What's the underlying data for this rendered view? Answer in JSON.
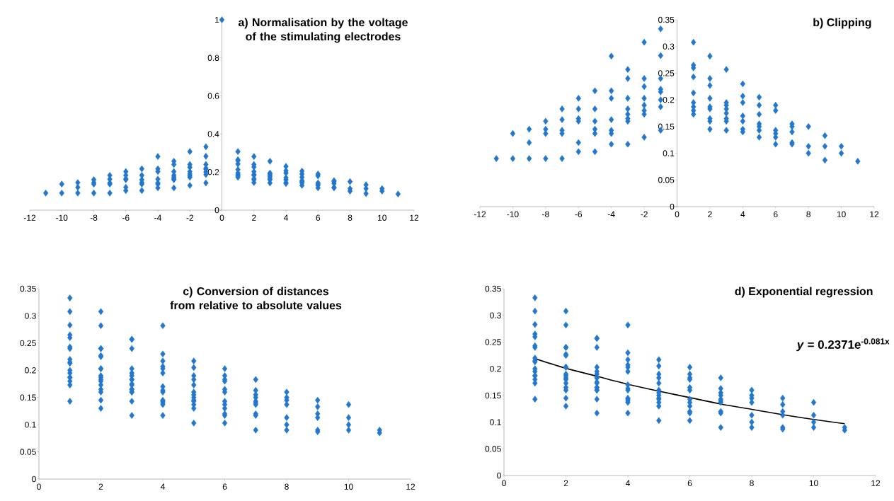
{
  "chart_data": [
    {
      "type": "scatter",
      "title": "a) Normalisation by the voltage of the stimulating electrodes",
      "xlim": [
        -12,
        12
      ],
      "xticks": [
        -12,
        -10,
        -8,
        -6,
        -4,
        -2,
        0,
        2,
        4,
        6,
        8,
        10,
        12
      ],
      "ylim": [
        0,
        1
      ],
      "yticks": [
        0,
        0.2,
        0.4,
        0.6,
        0.8,
        1
      ],
      "grid": false,
      "marker": "diamond",
      "series": [
        {
          "color": "#2377cc",
          "x": [
            0,
            -11,
            -10,
            -10,
            -9,
            -9,
            -9,
            -8,
            -8,
            -8,
            -8,
            -7,
            -7,
            -7,
            -7,
            -7,
            -6,
            -6,
            -6,
            -6,
            -6,
            -6,
            -5,
            -5,
            -5,
            -5,
            -5,
            -5,
            -4,
            -4,
            -4,
            -4,
            -4,
            -4,
            -4,
            -3,
            -3,
            -3,
            -3,
            -3,
            -3,
            -3,
            -3,
            -2,
            -2,
            -2,
            -2,
            -2,
            -2,
            -2,
            -2,
            -1,
            -1,
            -1,
            -1,
            -1,
            -1,
            -1,
            -1,
            1,
            1,
            1,
            1,
            1,
            1,
            1,
            1,
            1,
            2,
            2,
            2,
            2,
            2,
            2,
            2,
            2,
            2,
            3,
            3,
            3,
            3,
            3,
            3,
            3,
            3,
            4,
            4,
            4,
            4,
            4,
            4,
            4,
            5,
            5,
            5,
            5,
            5,
            5,
            5,
            6,
            6,
            6,
            6,
            6,
            6,
            7,
            7,
            7,
            7,
            7,
            8,
            8,
            8,
            9,
            9,
            9,
            10,
            10,
            11
          ],
          "values": [
            1,
            0.09,
            0.09,
            0.137,
            0.09,
            0.12,
            0.145,
            0.09,
            0.137,
            0.145,
            0.16,
            0.09,
            0.137,
            0.143,
            0.163,
            0.183,
            0.103,
            0.12,
            0.16,
            0.165,
            0.183,
            0.203,
            0.103,
            0.137,
            0.145,
            0.16,
            0.183,
            0.217,
            0.117,
            0.137,
            0.143,
            0.163,
            0.203,
            0.217,
            0.282,
            0.117,
            0.16,
            0.165,
            0.173,
            0.183,
            0.203,
            0.24,
            0.257,
            0.13,
            0.173,
            0.18,
            0.19,
            0.203,
            0.225,
            0.24,
            0.308,
            0.143,
            0.187,
            0.2,
            0.215,
            0.22,
            0.24,
            0.283,
            0.333,
            0.173,
            0.18,
            0.187,
            0.195,
            0.213,
            0.243,
            0.26,
            0.265,
            0.308,
            0.145,
            0.16,
            0.165,
            0.183,
            0.187,
            0.203,
            0.227,
            0.24,
            0.282,
            0.143,
            0.16,
            0.165,
            0.175,
            0.183,
            0.19,
            0.195,
            0.257,
            0.14,
            0.145,
            0.16,
            0.17,
            0.195,
            0.207,
            0.23,
            0.13,
            0.143,
            0.15,
            0.155,
            0.173,
            0.19,
            0.205,
            0.117,
            0.13,
            0.137,
            0.143,
            0.18,
            0.19,
            0.117,
            0.12,
            0.14,
            0.15,
            0.155,
            0.1,
            0.113,
            0.15,
            0.087,
            0.113,
            0.133,
            0.1,
            0.113,
            0.085
          ]
        }
      ]
    },
    {
      "type": "scatter",
      "title": "b) Clipping",
      "xlim": [
        -12,
        12
      ],
      "xticks": [
        -12,
        -10,
        -8,
        -6,
        -4,
        -2,
        0,
        2,
        4,
        6,
        8,
        10,
        12
      ],
      "ylim": [
        0,
        0.35
      ],
      "yticks": [
        0,
        0.05,
        0.1,
        0.15,
        0.2,
        0.25,
        0.3,
        0.35
      ],
      "grid": false,
      "marker": "diamond",
      "series": [
        {
          "color": "#2377cc",
          "x": [
            -11,
            -10,
            -10,
            -9,
            -9,
            -9,
            -8,
            -8,
            -8,
            -8,
            -7,
            -7,
            -7,
            -7,
            -7,
            -6,
            -6,
            -6,
            -6,
            -6,
            -6,
            -5,
            -5,
            -5,
            -5,
            -5,
            -5,
            -4,
            -4,
            -4,
            -4,
            -4,
            -4,
            -4,
            -3,
            -3,
            -3,
            -3,
            -3,
            -3,
            -3,
            -3,
            -2,
            -2,
            -2,
            -2,
            -2,
            -2,
            -2,
            -2,
            -1,
            -1,
            -1,
            -1,
            -1,
            -1,
            -1,
            -1,
            1,
            1,
            1,
            1,
            1,
            1,
            1,
            1,
            1,
            2,
            2,
            2,
            2,
            2,
            2,
            2,
            2,
            2,
            3,
            3,
            3,
            3,
            3,
            3,
            3,
            3,
            4,
            4,
            4,
            4,
            4,
            4,
            4,
            5,
            5,
            5,
            5,
            5,
            5,
            5,
            6,
            6,
            6,
            6,
            6,
            6,
            7,
            7,
            7,
            7,
            7,
            8,
            8,
            8,
            9,
            9,
            9,
            10,
            10,
            11
          ],
          "values": [
            0.09,
            0.09,
            0.137,
            0.09,
            0.12,
            0.145,
            0.09,
            0.137,
            0.145,
            0.16,
            0.09,
            0.137,
            0.143,
            0.163,
            0.183,
            0.103,
            0.12,
            0.16,
            0.165,
            0.183,
            0.203,
            0.103,
            0.137,
            0.145,
            0.16,
            0.183,
            0.217,
            0.117,
            0.137,
            0.143,
            0.163,
            0.203,
            0.217,
            0.282,
            0.117,
            0.16,
            0.165,
            0.173,
            0.183,
            0.203,
            0.24,
            0.257,
            0.13,
            0.173,
            0.18,
            0.19,
            0.203,
            0.225,
            0.24,
            0.308,
            0.143,
            0.187,
            0.2,
            0.215,
            0.22,
            0.24,
            0.283,
            0.333,
            0.173,
            0.18,
            0.187,
            0.195,
            0.213,
            0.243,
            0.26,
            0.265,
            0.308,
            0.145,
            0.16,
            0.165,
            0.183,
            0.187,
            0.203,
            0.227,
            0.24,
            0.282,
            0.143,
            0.16,
            0.165,
            0.175,
            0.183,
            0.19,
            0.195,
            0.257,
            0.14,
            0.145,
            0.16,
            0.17,
            0.195,
            0.207,
            0.23,
            0.13,
            0.143,
            0.15,
            0.155,
            0.173,
            0.19,
            0.205,
            0.117,
            0.13,
            0.137,
            0.143,
            0.18,
            0.19,
            0.117,
            0.12,
            0.14,
            0.15,
            0.155,
            0.1,
            0.113,
            0.15,
            0.087,
            0.113,
            0.133,
            0.1,
            0.113,
            0.085
          ]
        }
      ]
    },
    {
      "type": "scatter",
      "title": "c) Conversion of distances from relative to absolute values",
      "xlim": [
        0,
        12
      ],
      "xticks": [
        0,
        2,
        4,
        6,
        8,
        10,
        12
      ],
      "ylim": [
        0,
        0.35
      ],
      "yticks": [
        0,
        0.05,
        0.1,
        0.15,
        0.2,
        0.25,
        0.3,
        0.35
      ],
      "grid": false,
      "marker": "diamond",
      "series": [
        {
          "color": "#2377cc",
          "x": [
            1,
            1,
            1,
            1,
            1,
            1,
            1,
            1,
            1,
            1,
            1,
            1,
            1,
            1,
            1,
            1,
            1,
            2,
            2,
            2,
            2,
            2,
            2,
            2,
            2,
            2,
            2,
            2,
            2,
            2,
            2,
            2,
            2,
            2,
            3,
            3,
            3,
            3,
            3,
            3,
            3,
            3,
            3,
            3,
            3,
            3,
            3,
            3,
            3,
            3,
            4,
            4,
            4,
            4,
            4,
            4,
            4,
            4,
            4,
            4,
            4,
            4,
            4,
            4,
            5,
            5,
            5,
            5,
            5,
            5,
            5,
            5,
            5,
            5,
            5,
            5,
            5,
            6,
            6,
            6,
            6,
            6,
            6,
            6,
            6,
            6,
            6,
            6,
            6,
            7,
            7,
            7,
            7,
            7,
            7,
            7,
            7,
            7,
            7,
            8,
            8,
            8,
            8,
            8,
            8,
            8,
            9,
            9,
            9,
            9,
            9,
            9,
            10,
            10,
            10,
            10,
            11,
            11
          ],
          "values": [
            0.143,
            0.187,
            0.2,
            0.215,
            0.22,
            0.24,
            0.283,
            0.333,
            0.173,
            0.18,
            0.187,
            0.195,
            0.213,
            0.243,
            0.26,
            0.265,
            0.308,
            0.13,
            0.173,
            0.18,
            0.19,
            0.203,
            0.225,
            0.24,
            0.308,
            0.145,
            0.16,
            0.165,
            0.183,
            0.187,
            0.203,
            0.227,
            0.24,
            0.282,
            0.117,
            0.16,
            0.165,
            0.173,
            0.183,
            0.203,
            0.24,
            0.257,
            0.143,
            0.16,
            0.165,
            0.175,
            0.183,
            0.19,
            0.195,
            0.257,
            0.117,
            0.137,
            0.143,
            0.163,
            0.203,
            0.217,
            0.282,
            0.14,
            0.145,
            0.16,
            0.17,
            0.195,
            0.207,
            0.23,
            0.103,
            0.137,
            0.145,
            0.16,
            0.183,
            0.217,
            0.13,
            0.143,
            0.15,
            0.155,
            0.173,
            0.19,
            0.205,
            0.103,
            0.12,
            0.16,
            0.165,
            0.183,
            0.203,
            0.117,
            0.13,
            0.137,
            0.143,
            0.18,
            0.19,
            0.09,
            0.137,
            0.143,
            0.163,
            0.183,
            0.117,
            0.12,
            0.14,
            0.15,
            0.155,
            0.09,
            0.137,
            0.145,
            0.16,
            0.1,
            0.113,
            0.15,
            0.09,
            0.12,
            0.145,
            0.087,
            0.113,
            0.133,
            0.09,
            0.137,
            0.1,
            0.113,
            0.09,
            0.085
          ]
        }
      ]
    },
    {
      "type": "scatter",
      "title": "d) Exponential regression",
      "xlim": [
        0,
        12
      ],
      "xticks": [
        0,
        2,
        4,
        6,
        8,
        10,
        12
      ],
      "ylim": [
        0,
        0.35
      ],
      "yticks": [
        0,
        0.05,
        0.1,
        0.15,
        0.2,
        0.25,
        0.3,
        0.35
      ],
      "grid": false,
      "marker": "diamond",
      "annotations": [
        "*y* = 0.2371e$^{-0.081x}$"
      ],
      "series": [
        {
          "color": "#2377cc",
          "x": [
            1,
            1,
            1,
            1,
            1,
            1,
            1,
            1,
            1,
            1,
            1,
            1,
            1,
            1,
            1,
            1,
            1,
            2,
            2,
            2,
            2,
            2,
            2,
            2,
            2,
            2,
            2,
            2,
            2,
            2,
            2,
            2,
            2,
            2,
            3,
            3,
            3,
            3,
            3,
            3,
            3,
            3,
            3,
            3,
            3,
            3,
            3,
            3,
            3,
            3,
            4,
            4,
            4,
            4,
            4,
            4,
            4,
            4,
            4,
            4,
            4,
            4,
            4,
            4,
            5,
            5,
            5,
            5,
            5,
            5,
            5,
            5,
            5,
            5,
            5,
            5,
            5,
            6,
            6,
            6,
            6,
            6,
            6,
            6,
            6,
            6,
            6,
            6,
            6,
            7,
            7,
            7,
            7,
            7,
            7,
            7,
            7,
            7,
            7,
            8,
            8,
            8,
            8,
            8,
            8,
            8,
            9,
            9,
            9,
            9,
            9,
            9,
            10,
            10,
            10,
            10,
            11,
            11
          ],
          "values": [
            0.143,
            0.187,
            0.2,
            0.215,
            0.22,
            0.24,
            0.283,
            0.333,
            0.173,
            0.18,
            0.187,
            0.195,
            0.213,
            0.243,
            0.26,
            0.265,
            0.308,
            0.13,
            0.173,
            0.18,
            0.19,
            0.203,
            0.225,
            0.24,
            0.308,
            0.145,
            0.16,
            0.165,
            0.183,
            0.187,
            0.203,
            0.227,
            0.24,
            0.282,
            0.117,
            0.16,
            0.165,
            0.173,
            0.183,
            0.203,
            0.24,
            0.257,
            0.143,
            0.16,
            0.165,
            0.175,
            0.183,
            0.19,
            0.195,
            0.257,
            0.117,
            0.137,
            0.143,
            0.163,
            0.203,
            0.217,
            0.282,
            0.14,
            0.145,
            0.16,
            0.17,
            0.195,
            0.207,
            0.23,
            0.103,
            0.137,
            0.145,
            0.16,
            0.183,
            0.217,
            0.13,
            0.143,
            0.15,
            0.155,
            0.173,
            0.19,
            0.205,
            0.103,
            0.12,
            0.16,
            0.165,
            0.183,
            0.203,
            0.117,
            0.13,
            0.137,
            0.143,
            0.18,
            0.19,
            0.09,
            0.137,
            0.143,
            0.163,
            0.183,
            0.117,
            0.12,
            0.14,
            0.15,
            0.155,
            0.09,
            0.137,
            0.145,
            0.16,
            0.1,
            0.113,
            0.15,
            0.09,
            0.12,
            0.145,
            0.087,
            0.113,
            0.133,
            0.09,
            0.137,
            0.1,
            0.113,
            0.09,
            0.085
          ]
        },
        {
          "type": "line",
          "marker": "none",
          "color": "#000000",
          "x": [
            1,
            2,
            3,
            4,
            5,
            6,
            7,
            8,
            9,
            10,
            11
          ],
          "values": [
            0.219,
            0.201,
            0.186,
            0.171,
            0.158,
            0.146,
            0.134,
            0.124,
            0.114,
            0.105,
            0.097
          ]
        }
      ]
    }
  ]
}
